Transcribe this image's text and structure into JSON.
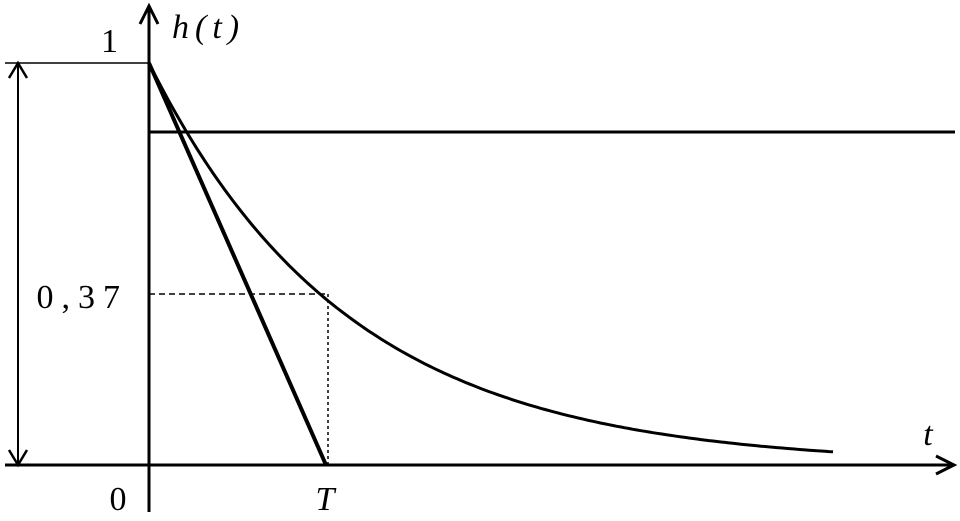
{
  "labels": {
    "one": "1",
    "y_axis": "h(t)",
    "level": "0,37",
    "origin": "0",
    "time_constant": "T",
    "x_axis": "t"
  }
}
